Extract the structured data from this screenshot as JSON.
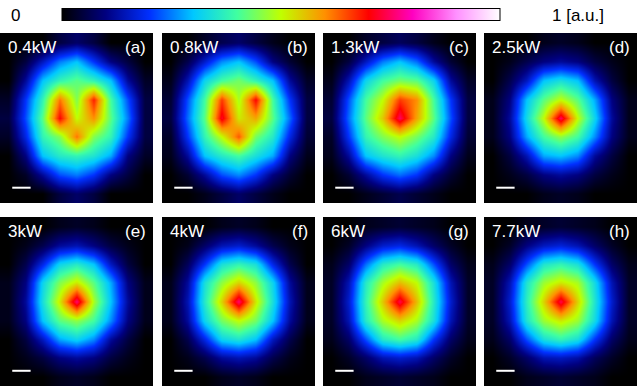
{
  "chart_data": {
    "type": "heatmap",
    "colorbar": {
      "range": [
        0,
        1
      ],
      "ticks": [
        0,
        {
          "value": 1,
          "label": "1 [a.u.]"
        }
      ]
    },
    "panels": [
      {
        "title": "0.4kW",
        "label": "(a)",
        "cells": [
          [
            0,
            0,
            0,
            0.05,
            0.08,
            0.05,
            0,
            0,
            0
          ],
          [
            0,
            0.05,
            0.15,
            0.25,
            0.3,
            0.2,
            0.1,
            0.05,
            0
          ],
          [
            0,
            0.12,
            0.3,
            0.38,
            0.42,
            0.38,
            0.3,
            0.12,
            0.03
          ],
          [
            0.03,
            0.2,
            0.38,
            0.62,
            0.45,
            0.68,
            0.4,
            0.22,
            0.05
          ],
          [
            0.05,
            0.22,
            0.42,
            0.7,
            0.5,
            0.6,
            0.42,
            0.25,
            0.05
          ],
          [
            0.03,
            0.18,
            0.38,
            0.45,
            0.62,
            0.45,
            0.38,
            0.2,
            0.05
          ],
          [
            0,
            0.1,
            0.3,
            0.36,
            0.38,
            0.35,
            0.28,
            0.1,
            0.03
          ],
          [
            0,
            0.03,
            0.12,
            0.22,
            0.25,
            0.2,
            0.1,
            0.05,
            0
          ],
          [
            0,
            0,
            0,
            0.05,
            0.08,
            0.05,
            0,
            0,
            0
          ]
        ]
      },
      {
        "title": "0.8kW",
        "label": "(b)",
        "cells": [
          [
            0,
            0,
            0.03,
            0.06,
            0.08,
            0.05,
            0.02,
            0,
            0
          ],
          [
            0,
            0.06,
            0.16,
            0.26,
            0.3,
            0.22,
            0.1,
            0.04,
            0
          ],
          [
            0.02,
            0.14,
            0.32,
            0.4,
            0.44,
            0.38,
            0.3,
            0.12,
            0.03
          ],
          [
            0.04,
            0.22,
            0.4,
            0.66,
            0.48,
            0.7,
            0.4,
            0.2,
            0.05
          ],
          [
            0.05,
            0.24,
            0.42,
            0.72,
            0.52,
            0.58,
            0.42,
            0.24,
            0.05
          ],
          [
            0.03,
            0.2,
            0.38,
            0.5,
            0.64,
            0.44,
            0.36,
            0.18,
            0.04
          ],
          [
            0.02,
            0.12,
            0.3,
            0.36,
            0.4,
            0.34,
            0.28,
            0.1,
            0.02
          ],
          [
            0,
            0.04,
            0.12,
            0.22,
            0.26,
            0.2,
            0.1,
            0.04,
            0
          ],
          [
            0,
            0,
            0.02,
            0.05,
            0.08,
            0.05,
            0.02,
            0,
            0
          ]
        ]
      },
      {
        "title": "1.3kW",
        "label": "(c)",
        "cells": [
          [
            0,
            0,
            0.03,
            0.05,
            0.07,
            0.05,
            0.02,
            0,
            0
          ],
          [
            0,
            0.05,
            0.15,
            0.25,
            0.3,
            0.24,
            0.12,
            0.04,
            0
          ],
          [
            0.02,
            0.14,
            0.32,
            0.4,
            0.44,
            0.42,
            0.32,
            0.12,
            0.03
          ],
          [
            0.04,
            0.22,
            0.4,
            0.5,
            0.66,
            0.6,
            0.4,
            0.2,
            0.05
          ],
          [
            0.05,
            0.24,
            0.42,
            0.55,
            0.75,
            0.58,
            0.42,
            0.22,
            0.05
          ],
          [
            0.03,
            0.2,
            0.38,
            0.45,
            0.5,
            0.44,
            0.36,
            0.18,
            0.04
          ],
          [
            0.02,
            0.12,
            0.3,
            0.35,
            0.38,
            0.34,
            0.26,
            0.1,
            0.02
          ],
          [
            0,
            0.04,
            0.12,
            0.2,
            0.24,
            0.2,
            0.1,
            0.04,
            0
          ],
          [
            0,
            0,
            0.02,
            0.04,
            0.06,
            0.04,
            0.02,
            0,
            0
          ]
        ]
      },
      {
        "title": "2.5kW",
        "label": "(d)",
        "cells": [
          [
            0,
            0,
            0,
            0.02,
            0.03,
            0.02,
            0,
            0,
            0
          ],
          [
            0,
            0.02,
            0.06,
            0.1,
            0.12,
            0.1,
            0.05,
            0.02,
            0
          ],
          [
            0,
            0.06,
            0.15,
            0.3,
            0.34,
            0.3,
            0.14,
            0.05,
            0
          ],
          [
            0.02,
            0.1,
            0.3,
            0.42,
            0.5,
            0.42,
            0.28,
            0.1,
            0.02
          ],
          [
            0.02,
            0.12,
            0.33,
            0.5,
            0.75,
            0.5,
            0.32,
            0.12,
            0.02
          ],
          [
            0.02,
            0.1,
            0.28,
            0.4,
            0.46,
            0.4,
            0.26,
            0.1,
            0.02
          ],
          [
            0,
            0.05,
            0.14,
            0.28,
            0.3,
            0.26,
            0.12,
            0.05,
            0
          ],
          [
            0,
            0.02,
            0.05,
            0.1,
            0.12,
            0.1,
            0.05,
            0.02,
            0
          ],
          [
            0,
            0,
            0,
            0.02,
            0.03,
            0.02,
            0,
            0,
            0
          ]
        ]
      },
      {
        "title": "3kW",
        "label": "(e)",
        "cells": [
          [
            0,
            0,
            0,
            0.02,
            0.03,
            0.02,
            0,
            0,
            0
          ],
          [
            0,
            0.02,
            0.06,
            0.12,
            0.14,
            0.1,
            0.05,
            0.02,
            0
          ],
          [
            0,
            0.06,
            0.18,
            0.32,
            0.36,
            0.3,
            0.15,
            0.05,
            0
          ],
          [
            0.02,
            0.1,
            0.32,
            0.45,
            0.52,
            0.42,
            0.28,
            0.1,
            0.02
          ],
          [
            0.02,
            0.12,
            0.34,
            0.52,
            0.76,
            0.48,
            0.3,
            0.12,
            0.02
          ],
          [
            0.02,
            0.1,
            0.3,
            0.42,
            0.46,
            0.4,
            0.26,
            0.1,
            0.02
          ],
          [
            0,
            0.05,
            0.15,
            0.28,
            0.32,
            0.26,
            0.12,
            0.05,
            0
          ],
          [
            0,
            0.02,
            0.05,
            0.1,
            0.12,
            0.1,
            0.05,
            0.02,
            0
          ],
          [
            0,
            0,
            0,
            0.02,
            0.03,
            0.02,
            0,
            0,
            0
          ]
        ]
      },
      {
        "title": "4kW",
        "label": "(f)",
        "cells": [
          [
            0,
            0,
            0,
            0.02,
            0.03,
            0.02,
            0,
            0,
            0
          ],
          [
            0,
            0.02,
            0.08,
            0.14,
            0.16,
            0.12,
            0.06,
            0.02,
            0
          ],
          [
            0,
            0.07,
            0.2,
            0.34,
            0.38,
            0.34,
            0.18,
            0.06,
            0
          ],
          [
            0.02,
            0.12,
            0.34,
            0.46,
            0.54,
            0.46,
            0.32,
            0.12,
            0.02
          ],
          [
            0.02,
            0.14,
            0.36,
            0.54,
            0.76,
            0.52,
            0.34,
            0.14,
            0.02
          ],
          [
            0.02,
            0.12,
            0.32,
            0.44,
            0.5,
            0.44,
            0.3,
            0.12,
            0.02
          ],
          [
            0,
            0.06,
            0.18,
            0.32,
            0.35,
            0.3,
            0.15,
            0.06,
            0
          ],
          [
            0,
            0.02,
            0.06,
            0.12,
            0.14,
            0.12,
            0.06,
            0.02,
            0
          ],
          [
            0,
            0,
            0,
            0.02,
            0.03,
            0.02,
            0,
            0,
            0
          ]
        ]
      },
      {
        "title": "6kW",
        "label": "(g)",
        "cells": [
          [
            0,
            0,
            0.02,
            0.03,
            0.04,
            0.03,
            0.02,
            0,
            0
          ],
          [
            0,
            0.03,
            0.1,
            0.16,
            0.18,
            0.14,
            0.08,
            0.03,
            0
          ],
          [
            0.02,
            0.08,
            0.24,
            0.36,
            0.4,
            0.36,
            0.22,
            0.08,
            0.02
          ],
          [
            0.03,
            0.14,
            0.36,
            0.48,
            0.56,
            0.5,
            0.34,
            0.14,
            0.03
          ],
          [
            0.03,
            0.16,
            0.38,
            0.55,
            0.74,
            0.56,
            0.36,
            0.16,
            0.03
          ],
          [
            0.03,
            0.14,
            0.36,
            0.48,
            0.54,
            0.48,
            0.34,
            0.14,
            0.03
          ],
          [
            0.02,
            0.08,
            0.22,
            0.36,
            0.4,
            0.36,
            0.2,
            0.08,
            0.02
          ],
          [
            0,
            0.03,
            0.08,
            0.14,
            0.16,
            0.14,
            0.08,
            0.03,
            0
          ],
          [
            0,
            0,
            0.02,
            0.03,
            0.04,
            0.03,
            0.02,
            0,
            0
          ]
        ]
      },
      {
        "title": "7.7kW",
        "label": "(h)",
        "cells": [
          [
            0,
            0,
            0.02,
            0.03,
            0.04,
            0.03,
            0.02,
            0,
            0
          ],
          [
            0,
            0.03,
            0.1,
            0.15,
            0.17,
            0.14,
            0.08,
            0.03,
            0
          ],
          [
            0.02,
            0.08,
            0.22,
            0.35,
            0.38,
            0.34,
            0.2,
            0.08,
            0.02
          ],
          [
            0.03,
            0.14,
            0.35,
            0.47,
            0.52,
            0.48,
            0.33,
            0.14,
            0.03
          ],
          [
            0.03,
            0.16,
            0.37,
            0.54,
            0.74,
            0.54,
            0.35,
            0.16,
            0.03
          ],
          [
            0.03,
            0.14,
            0.35,
            0.47,
            0.52,
            0.47,
            0.33,
            0.14,
            0.03
          ],
          [
            0.02,
            0.08,
            0.22,
            0.34,
            0.38,
            0.34,
            0.2,
            0.08,
            0.02
          ],
          [
            0,
            0.03,
            0.08,
            0.14,
            0.15,
            0.13,
            0.07,
            0.03,
            0
          ],
          [
            0,
            0,
            0.02,
            0.03,
            0.04,
            0.03,
            0.02,
            0,
            0
          ]
        ]
      }
    ]
  }
}
